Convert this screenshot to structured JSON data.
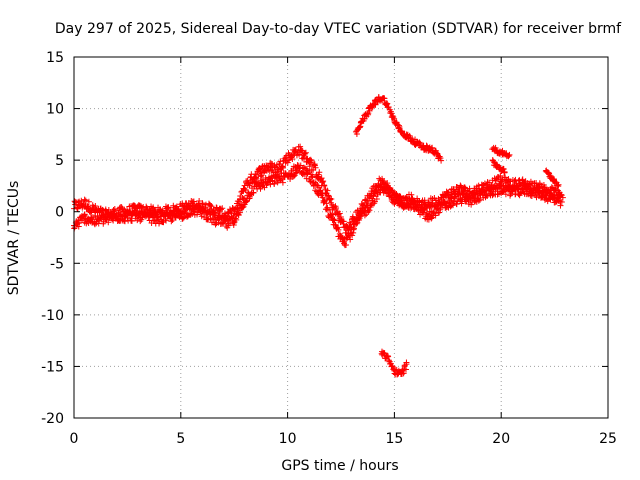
{
  "chart_data": {
    "type": "scatter",
    "title": "Day 297 of 2025, Sidereal Day-to-day VTEC variation (SDTVAR) for receiver brmf",
    "xlabel": "GPS time / hours",
    "ylabel": "SDTVAR / TECUs",
    "xlim": [
      0,
      25
    ],
    "ylim": [
      -20,
      15
    ],
    "xticks": [
      0,
      5,
      10,
      15,
      20,
      25
    ],
    "yticks": [
      -20,
      -15,
      -10,
      -5,
      0,
      5,
      10,
      15
    ],
    "xtick_labels": [
      "0",
      "5",
      "10",
      "15",
      "20",
      "25"
    ],
    "ytick_labels": [
      "-20",
      "-15",
      "-10",
      "-5",
      "0",
      "5",
      "10",
      "15"
    ],
    "grid": true,
    "marker": "+",
    "color": "#ff0000",
    "series": [
      {
        "name": "main-band-upper",
        "spread": 0.5,
        "x": [
          0,
          0.5,
          1,
          1.5,
          2,
          3,
          4,
          5,
          5.7,
          6.5,
          7.2,
          7.6,
          8,
          8.5,
          9,
          9.5,
          10,
          10.5,
          11,
          11.5,
          12,
          12.5,
          12.8,
          13.2,
          13.6,
          14,
          14.4,
          14.7,
          15,
          15.4,
          15.8,
          16.2,
          16.6,
          17,
          17.5,
          18,
          18.5,
          19,
          19.5,
          20,
          20.5,
          21,
          21.5,
          22,
          22.5,
          22.9
        ],
        "y": [
          0.5,
          0.8,
          0.1,
          -0.3,
          -0.1,
          0.2,
          -0.1,
          0.3,
          0.7,
          0.2,
          -0.4,
          0.2,
          2.5,
          3.6,
          4.3,
          4.2,
          5.2,
          6.0,
          5.0,
          3.3,
          1.0,
          -0.8,
          -1.8,
          -0.5,
          0.8,
          2.0,
          3.0,
          2.0,
          1.2,
          1.0,
          1.3,
          0.5,
          0.8,
          1.0,
          1.6,
          2.2,
          1.8,
          2.2,
          2.6,
          3.0,
          2.6,
          2.7,
          2.4,
          2.2,
          1.8,
          1.3
        ]
      },
      {
        "name": "main-band-lower",
        "spread": 0.5,
        "x": [
          0,
          0.5,
          1,
          2,
          3,
          4,
          5,
          5.5,
          6,
          6.6,
          7.2,
          7.6,
          8,
          8.5,
          9,
          9.5,
          10,
          10.5,
          11,
          11.5,
          12,
          12.4,
          12.7,
          13,
          13.4,
          13.8,
          14.2,
          14.6,
          15,
          15.5,
          16,
          16.6,
          17,
          17.6,
          18,
          18.6,
          19,
          19.6,
          20,
          20.6,
          21.2,
          21.8,
          22.3,
          22.8
        ],
        "y": [
          -1.4,
          -0.6,
          -0.9,
          -0.5,
          -0.4,
          -0.7,
          -0.3,
          0.2,
          0.0,
          -0.8,
          -1.2,
          -0.6,
          1.2,
          2.5,
          2.8,
          3.2,
          3.4,
          4.3,
          3.5,
          1.8,
          -0.4,
          -2.0,
          -2.8,
          -2.0,
          -0.5,
          0.5,
          1.8,
          2.5,
          1.4,
          0.8,
          0.6,
          -0.6,
          0.3,
          0.8,
          1.3,
          1.1,
          1.6,
          2.0,
          2.2,
          2.0,
          2.1,
          1.8,
          1.4,
          0.8
        ]
      },
      {
        "name": "arc-high",
        "spread": 0.25,
        "x": [
          13.2,
          13.5,
          13.8,
          14.1,
          14.3,
          14.5,
          14.7,
          15.0,
          15.4,
          15.8,
          16.3,
          16.8,
          17.2
        ],
        "y": [
          7.5,
          8.8,
          9.8,
          10.6,
          11.0,
          10.9,
          10.2,
          8.8,
          7.6,
          7.0,
          6.3,
          6.0,
          5.0
        ]
      },
      {
        "name": "arc-low",
        "spread": 0.3,
        "x": [
          14.4,
          14.7,
          15.0,
          15.3,
          15.6
        ],
        "y": [
          -13.6,
          -14.3,
          -15.4,
          -15.8,
          -14.8
        ]
      },
      {
        "name": "segment-20h",
        "spread": 0.2,
        "x": [
          19.6,
          19.9,
          20.2,
          20.4
        ],
        "y": [
          6.2,
          5.8,
          5.6,
          5.5
        ]
      },
      {
        "name": "segment-19-20h",
        "spread": 0.2,
        "x": [
          19.6,
          19.9,
          20.2
        ],
        "y": [
          4.8,
          4.3,
          3.8
        ]
      },
      {
        "name": "segment-22h",
        "spread": 0.2,
        "x": [
          22.1,
          22.4,
          22.7
        ],
        "y": [
          3.9,
          3.2,
          2.5
        ]
      }
    ]
  }
}
